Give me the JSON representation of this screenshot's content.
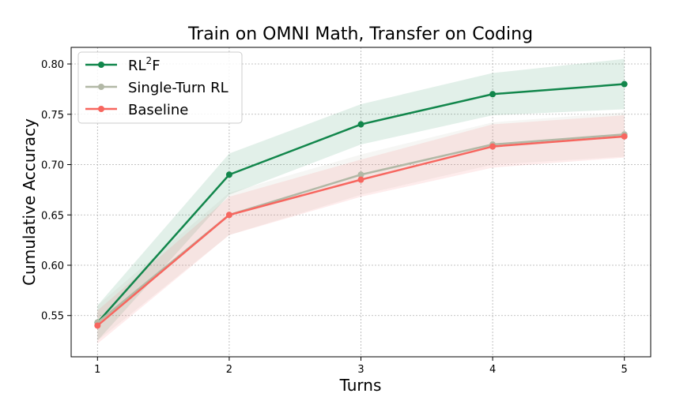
{
  "chart_data": {
    "type": "line",
    "title": "Train on OMNI Math, Transfer on Coding",
    "xlabel": "Turns",
    "ylabel": "Cumulative Accuracy",
    "x": [
      1,
      2,
      3,
      4,
      5
    ],
    "xticks": [
      "1",
      "2",
      "3",
      "4",
      "5"
    ],
    "yticks": [
      "0.55",
      "0.60",
      "0.65",
      "0.70",
      "0.75",
      "0.80"
    ],
    "xlim": [
      0.8,
      5.2
    ],
    "ylim": [
      0.509,
      0.8165
    ],
    "grid": true,
    "legend_position": "top-left",
    "series": [
      {
        "name": "RL",
        "name_sup": "2",
        "name_suffix": "F",
        "color": "#11864b",
        "values": [
          0.543,
          0.69,
          0.74,
          0.77,
          0.78
        ],
        "lower": [
          0.525,
          0.67,
          0.72,
          0.749,
          0.755
        ],
        "upper": [
          0.56,
          0.711,
          0.76,
          0.791,
          0.805
        ]
      },
      {
        "name": "Single-Turn RL",
        "color": "#b2b8a6",
        "values": [
          0.543,
          0.65,
          0.69,
          0.72,
          0.73
        ],
        "lower": [
          0.525,
          0.63,
          0.67,
          0.7,
          0.708
        ],
        "upper": [
          0.56,
          0.672,
          0.71,
          0.742,
          0.752
        ]
      },
      {
        "name": "Baseline",
        "color": "#f7665f",
        "values": [
          0.54,
          0.65,
          0.685,
          0.718,
          0.728
        ],
        "lower": [
          0.522,
          0.63,
          0.668,
          0.697,
          0.707
        ],
        "upper": [
          0.555,
          0.668,
          0.705,
          0.74,
          0.749
        ]
      }
    ]
  }
}
